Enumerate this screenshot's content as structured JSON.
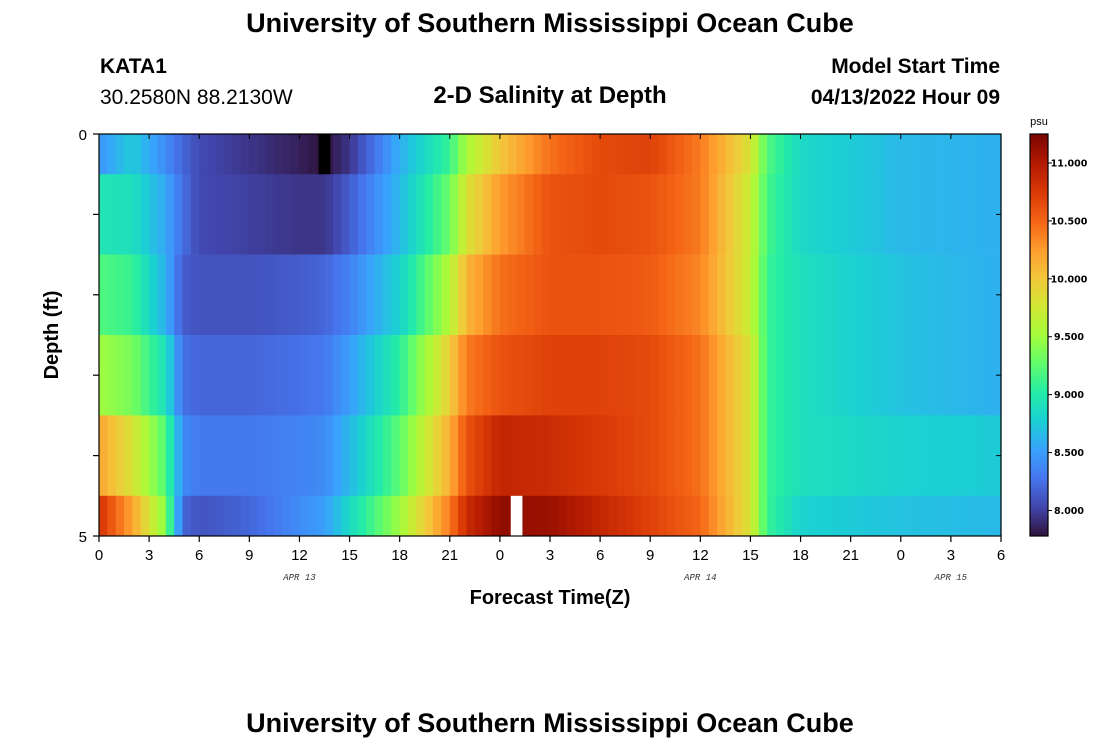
{
  "header": {
    "title": "University of Southern Mississippi Ocean Cube",
    "station_id": "KATA1",
    "coords": "30.2580N  88.2130W",
    "subtitle": "2-D Salinity at Depth",
    "model_start_label": "Model Start Time",
    "model_start_value": "04/13/2022 Hour 09"
  },
  "footer": {
    "title": "University of Southern Mississippi Ocean Cube"
  },
  "colors": {
    "colormap": [
      "#30123b",
      "#4145ab",
      "#4675ed",
      "#39a2fc",
      "#1bcfd4",
      "#24eca6",
      "#61fc6c",
      "#a4fc3b",
      "#d1e834",
      "#f3c63a",
      "#fe9b2d",
      "#f36315",
      "#d93806",
      "#b11901",
      "#7a0402"
    ]
  },
  "chart_data": {
    "type": "heatmap",
    "title": "2-D Salinity at Depth",
    "xlabel": "Forecast Time(Z)",
    "ylabel": "Depth (ft)",
    "x_tick_labels": [
      "0",
      "3",
      "6",
      "9",
      "12",
      "15",
      "18",
      "21",
      "0",
      "3",
      "6",
      "9",
      "12",
      "15",
      "18",
      "21",
      "0",
      "3",
      "6"
    ],
    "x_range_hours": [
      0,
      54
    ],
    "date_labels": [
      {
        "label": "APR 13",
        "hour": 12
      },
      {
        "label": "APR 14",
        "hour": 36
      },
      {
        "label": "APR 15",
        "hour": 51
      }
    ],
    "y_tick_labels": [
      "0",
      "5"
    ],
    "y_range": [
      0,
      5
    ],
    "depth_layers": [
      0,
      1,
      2,
      3,
      4,
      5
    ],
    "colorbar": {
      "unit": "psu",
      "range": [
        7.78,
        11.25
      ],
      "tick_labels": [
        "8.000",
        "8.500",
        "9.000",
        "9.500",
        "10.000",
        "10.500",
        "11.000"
      ]
    },
    "salinity_keyframes": {
      "hours": [
        0,
        2,
        4,
        5,
        6,
        9,
        12,
        13.5,
        15,
        18,
        21,
        22,
        24,
        27,
        30,
        33,
        36,
        39,
        40,
        42,
        48,
        54
      ],
      "layers": [
        {
          "depth": 0,
          "values": [
            8.45,
            8.75,
            8.4,
            8.2,
            8.05,
            7.95,
            7.85,
            7.78,
            7.95,
            8.6,
            9.1,
            9.55,
            10.0,
            10.45,
            10.65,
            10.7,
            10.4,
            9.8,
            9.2,
            8.85,
            8.65,
            8.6
          ]
        },
        {
          "depth": 1,
          "values": [
            8.95,
            8.9,
            8.55,
            8.25,
            8.05,
            8.0,
            7.95,
            7.95,
            8.15,
            8.65,
            9.3,
            9.8,
            10.25,
            10.6,
            10.65,
            10.6,
            10.4,
            9.7,
            9.15,
            8.85,
            8.65,
            8.6
          ]
        },
        {
          "depth": 2,
          "values": [
            9.2,
            9.1,
            8.6,
            8.15,
            8.1,
            8.1,
            8.15,
            8.2,
            8.35,
            8.8,
            9.6,
            10.1,
            10.45,
            10.6,
            10.6,
            10.55,
            10.35,
            9.7,
            9.1,
            8.9,
            8.7,
            8.6
          ]
        },
        {
          "depth": 3,
          "values": [
            9.5,
            9.35,
            8.9,
            8.25,
            8.2,
            8.2,
            8.25,
            8.3,
            8.5,
            9.05,
            9.95,
            10.4,
            10.6,
            10.7,
            10.7,
            10.65,
            10.45,
            9.8,
            9.1,
            8.9,
            8.7,
            8.6
          ]
        },
        {
          "depth": 4,
          "values": [
            10.2,
            9.8,
            9.2,
            8.4,
            8.3,
            8.3,
            8.35,
            8.4,
            8.65,
            9.25,
            10.15,
            10.6,
            10.9,
            10.85,
            10.75,
            10.65,
            10.45,
            9.8,
            9.1,
            8.9,
            8.8,
            8.75
          ]
        },
        {
          "depth": 5,
          "values": [
            10.8,
            10.2,
            9.4,
            8.2,
            8.1,
            8.2,
            8.4,
            8.5,
            8.85,
            9.5,
            10.4,
            10.85,
            11.15,
            11.1,
            10.9,
            10.7,
            10.5,
            9.8,
            9.1,
            8.8,
            8.7,
            8.65
          ]
        }
      ]
    },
    "missing_markers": [
      {
        "depth": 0,
        "hour": 13.5,
        "color": "#000000"
      },
      {
        "depth": 5,
        "hour": 25.0,
        "color": "#ffffff"
      }
    ]
  }
}
